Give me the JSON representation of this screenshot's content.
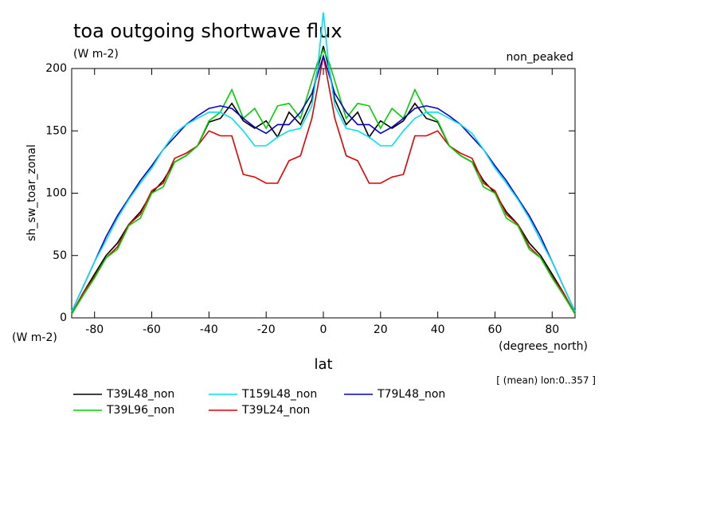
{
  "chart_data": {
    "type": "line",
    "title": "toa outgoing shortwave flux",
    "subtitle": "(W m-2)",
    "annotation": "non_peaked",
    "y_label": "sh_sw_toar_zonal",
    "y_units": "(W m-2)",
    "x_label": "lat",
    "x_units": "(degrees_north)",
    "footnote": "[ (mean) lon:0..357 ]",
    "xlim": [
      -88,
      88
    ],
    "xticks": [
      -80,
      -60,
      -40,
      -20,
      0,
      20,
      40,
      60,
      80
    ],
    "ylim": [
      0,
      200
    ],
    "yticks": [
      0,
      50,
      100,
      150,
      200
    ],
    "x": [
      -88,
      -84,
      -80,
      -76,
      -72,
      -68,
      -64,
      -60,
      -56,
      -52,
      -48,
      -44,
      -40,
      -36,
      -32,
      -28,
      -24,
      -20,
      -16,
      -12,
      -8,
      -4,
      -2,
      0,
      2,
      4,
      8,
      12,
      16,
      20,
      24,
      28,
      32,
      36,
      40,
      44,
      48,
      52,
      56,
      60,
      64,
      68,
      72,
      76,
      80,
      84,
      88
    ],
    "series": [
      {
        "name": "T39L48_non",
        "color": "#000000",
        "values": [
          3,
          20,
          35,
          50,
          60,
          75,
          85,
          100,
          110,
          125,
          130,
          138,
          157,
          160,
          172,
          158,
          152,
          158,
          145,
          165,
          155,
          175,
          200,
          218,
          200,
          175,
          155,
          165,
          145,
          158,
          152,
          158,
          172,
          160,
          157,
          138,
          130,
          125,
          110,
          100,
          85,
          75,
          60,
          50,
          35,
          20,
          3
        ]
      },
      {
        "name": "T39L24_non",
        "color": "#e00000",
        "values": [
          3,
          20,
          33,
          48,
          57,
          75,
          83,
          102,
          108,
          128,
          132,
          138,
          150,
          146,
          146,
          115,
          113,
          108,
          108,
          126,
          130,
          160,
          185,
          210,
          185,
          160,
          130,
          126,
          108,
          108,
          113,
          115,
          146,
          146,
          150,
          138,
          132,
          128,
          108,
          102,
          83,
          75,
          57,
          48,
          33,
          20,
          3
        ]
      },
      {
        "name": "T39L96_non",
        "color": "#00d000",
        "values": [
          3,
          18,
          32,
          48,
          55,
          74,
          80,
          100,
          105,
          125,
          130,
          138,
          158,
          165,
          183,
          160,
          168,
          152,
          170,
          172,
          160,
          190,
          205,
          215,
          205,
          190,
          160,
          172,
          170,
          152,
          168,
          160,
          183,
          165,
          158,
          138,
          130,
          125,
          105,
          100,
          80,
          74,
          55,
          48,
          32,
          18,
          3
        ]
      },
      {
        "name": "T79L48_non",
        "color": "#0000cc",
        "values": [
          5,
          25,
          45,
          65,
          82,
          96,
          110,
          122,
          135,
          145,
          155,
          162,
          168,
          170,
          168,
          160,
          153,
          148,
          155,
          155,
          165,
          180,
          195,
          210,
          195,
          180,
          165,
          155,
          155,
          148,
          153,
          160,
          168,
          170,
          168,
          162,
          155,
          145,
          135,
          122,
          110,
          96,
          82,
          65,
          45,
          25,
          5
        ]
      },
      {
        "name": "T159L48_non",
        "color": "#00e0f0",
        "values": [
          5,
          25,
          45,
          62,
          80,
          95,
          108,
          120,
          135,
          148,
          155,
          160,
          165,
          165,
          160,
          150,
          138,
          138,
          145,
          150,
          152,
          170,
          200,
          245,
          200,
          170,
          152,
          150,
          145,
          138,
          138,
          150,
          160,
          165,
          165,
          160,
          155,
          148,
          135,
          120,
          108,
          95,
          80,
          62,
          45,
          25,
          5
        ]
      }
    ]
  }
}
